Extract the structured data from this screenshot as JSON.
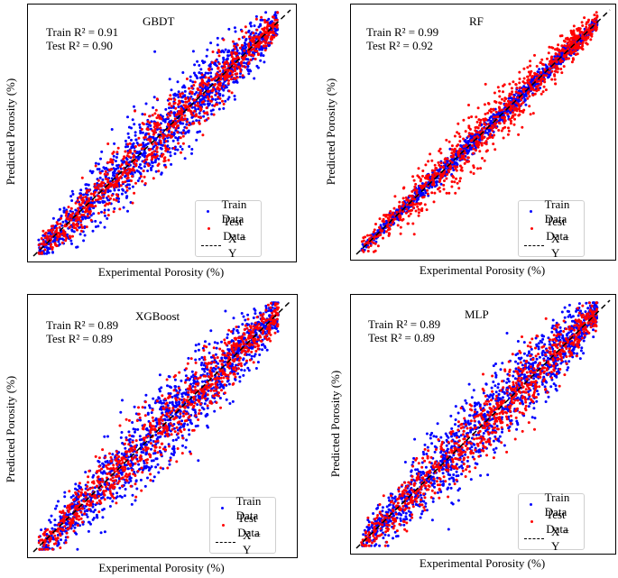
{
  "colors": {
    "train": "#0000ff",
    "test": "#ff0000",
    "identity": "#000000"
  },
  "chart_data": [
    {
      "type": "scatter",
      "title": "GBDT",
      "xlabel": "Experimental Porosity (%)",
      "ylabel": "Predicted Porosity (%)",
      "train_r2_label": "Train R² = 0.91",
      "test_r2_label": "Test R² = 0.90",
      "r2_train": 0.91,
      "r2_test": 0.9,
      "legend": [
        "Train Data",
        "Test Data",
        "X = Y"
      ],
      "legend_position": "lower-right",
      "xlim": [
        0,
        1
      ],
      "ylim": [
        0,
        1
      ],
      "series": [
        {
          "name": "Train Data",
          "color": "#0000ff",
          "scatter_width": 0.11
        },
        {
          "name": "Test Data",
          "color": "#ff0000",
          "scatter_width": 0.09
        }
      ]
    },
    {
      "type": "scatter",
      "title": "RF",
      "xlabel": "Experimental Porosity (%)",
      "ylabel": "Predicted Porosity (%)",
      "train_r2_label": "Train R² = 0.99",
      "test_r2_label": "Test R² = 0.92",
      "r2_train": 0.99,
      "r2_test": 0.92,
      "legend": [
        "Train Data",
        "Test Data",
        "X = Y"
      ],
      "legend_position": "lower-right",
      "xlim": [
        0,
        1
      ],
      "ylim": [
        0,
        1
      ],
      "series": [
        {
          "name": "Train Data",
          "color": "#0000ff",
          "scatter_width": 0.03
        },
        {
          "name": "Test Data",
          "color": "#ff0000",
          "scatter_width": 0.08
        }
      ]
    },
    {
      "type": "scatter",
      "title": "XGBoost",
      "xlabel": "Experimental Porosity (%)",
      "ylabel": "Predicted Porosity (%)",
      "train_r2_label": "Train R² = 0.89",
      "test_r2_label": "Test R² = 0.89",
      "r2_train": 0.89,
      "r2_test": 0.89,
      "legend": [
        "Train Data",
        "Test Data",
        "X = Y"
      ],
      "legend_position": "lower-right",
      "xlim": [
        0,
        1
      ],
      "ylim": [
        0,
        1
      ],
      "series": [
        {
          "name": "Train Data",
          "color": "#0000ff",
          "scatter_width": 0.12
        },
        {
          "name": "Test Data",
          "color": "#ff0000",
          "scatter_width": 0.1
        }
      ]
    },
    {
      "type": "scatter",
      "title": "MLP",
      "xlabel": "Experimental Porosity (%)",
      "ylabel": "Predicted Porosity (%)",
      "train_r2_label": "Train R² = 0.89",
      "test_r2_label": "Test R² = 0.89",
      "r2_train": 0.89,
      "r2_test": 0.89,
      "legend": [
        "Train Data",
        "Test Data",
        "X = Y"
      ],
      "legend_position": "lower-right",
      "xlim": [
        0,
        1
      ],
      "ylim": [
        0,
        1
      ],
      "series": [
        {
          "name": "Train Data",
          "color": "#0000ff",
          "scatter_width": 0.12
        },
        {
          "name": "Test Data",
          "color": "#ff0000",
          "scatter_width": 0.1
        }
      ]
    }
  ]
}
